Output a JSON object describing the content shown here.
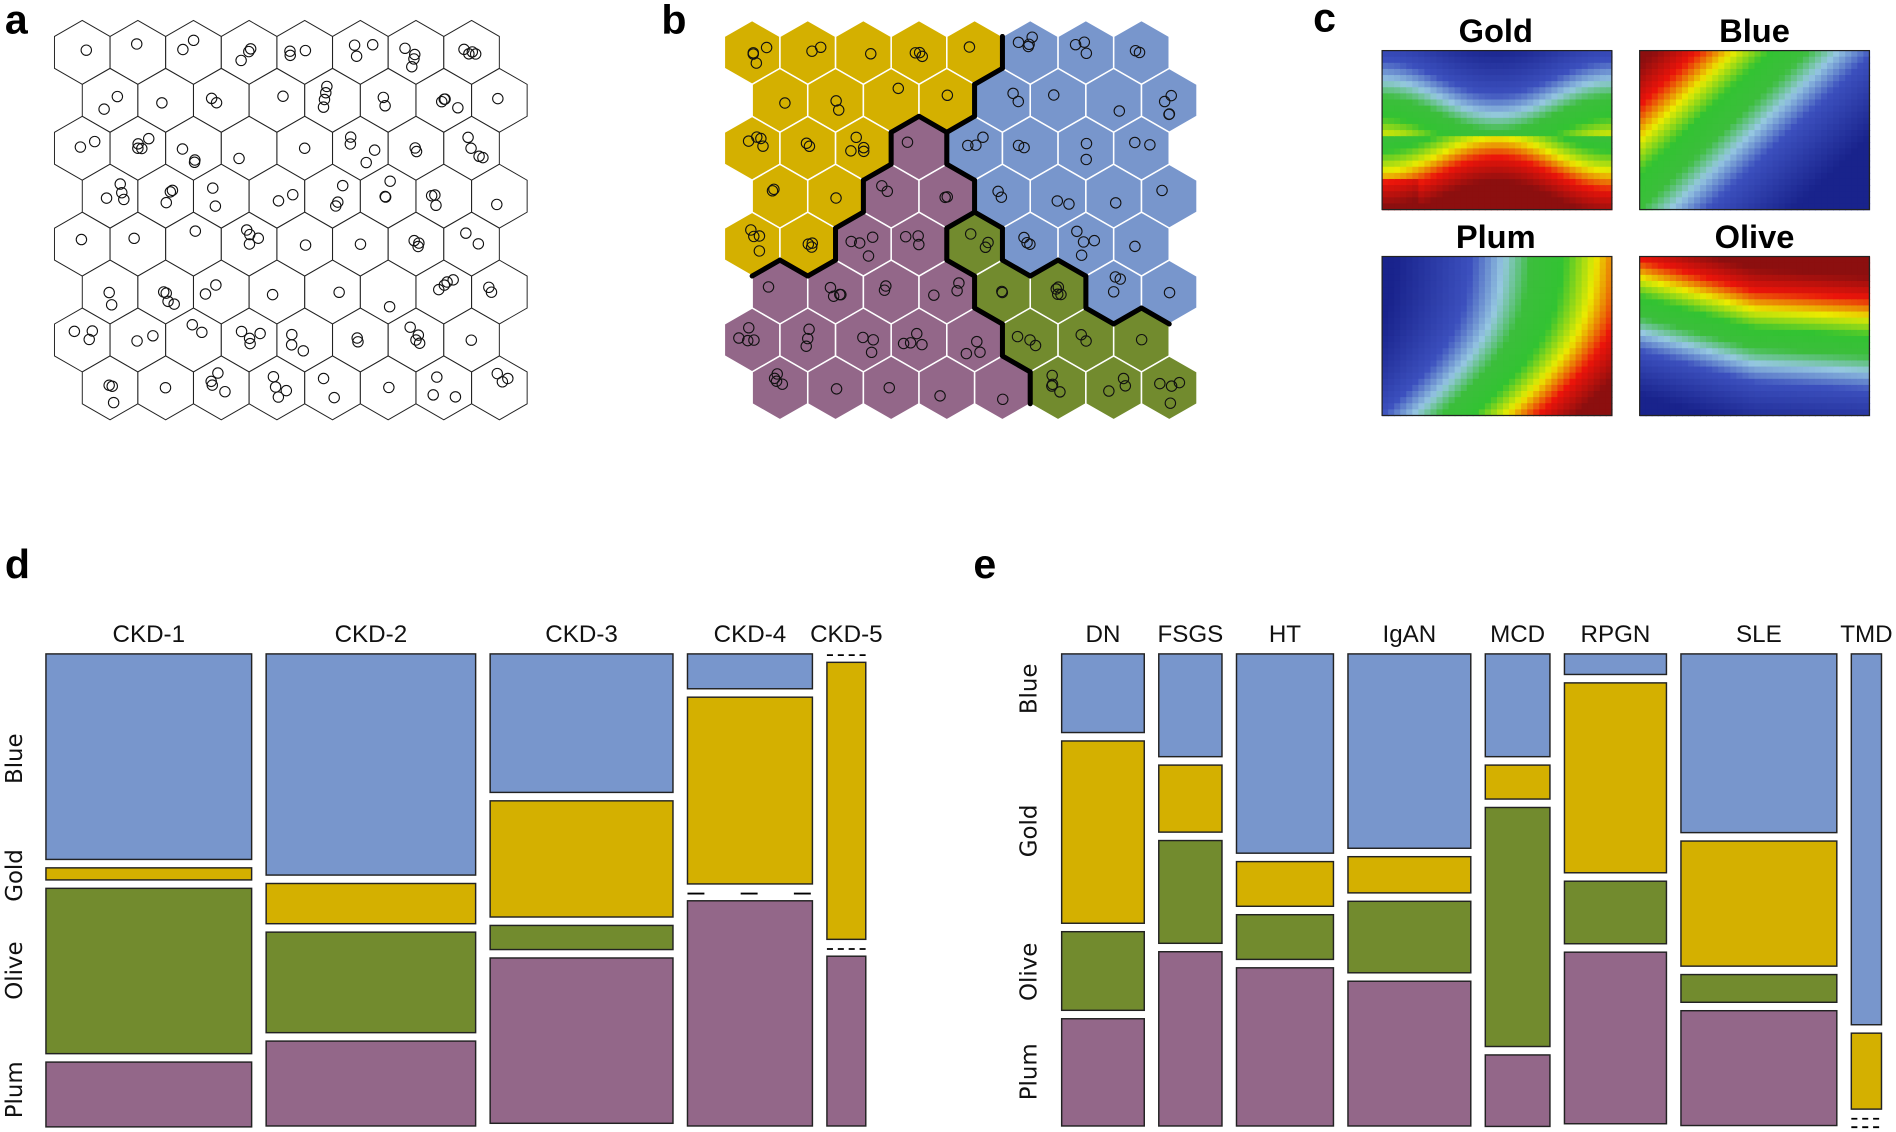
{
  "panel_labels": {
    "a": "a",
    "b": "b",
    "c": "c",
    "d": "d",
    "e": "e"
  },
  "colors": {
    "Gold": "#d4b000",
    "Blue": "#7896cc",
    "Plum": "#936789",
    "Olive": "#728b2e"
  },
  "chart_data": [
    {
      "panel": "a",
      "type": "som-grid",
      "rows": 8,
      "cols": 8
    },
    {
      "panel": "b",
      "type": "som-clusters",
      "rows": 8,
      "cols": 8,
      "clusters": [
        [
          "Gold",
          "Gold",
          "Gold",
          "Gold",
          "Gold",
          "Blue",
          "Blue",
          "Blue"
        ],
        [
          "Gold",
          "Gold",
          "Gold",
          "Gold",
          "Blue",
          "Blue",
          "Blue",
          "Blue"
        ],
        [
          "Gold",
          "Gold",
          "Gold",
          "Plum",
          "Blue",
          "Blue",
          "Blue",
          "Blue"
        ],
        [
          "Gold",
          "Gold",
          "Plum",
          "Plum",
          "Blue",
          "Blue",
          "Blue",
          "Blue"
        ],
        [
          "Gold",
          "Gold",
          "Plum",
          "Plum",
          "Olive",
          "Blue",
          "Blue",
          "Blue"
        ],
        [
          "Plum",
          "Plum",
          "Plum",
          "Plum",
          "Olive",
          "Olive",
          "Blue",
          "Blue"
        ],
        [
          "Plum",
          "Plum",
          "Plum",
          "Plum",
          "Plum",
          "Olive",
          "Olive",
          "Olive"
        ],
        [
          "Plum",
          "Plum",
          "Plum",
          "Plum",
          "Plum",
          "Olive",
          "Olive",
          "Olive"
        ]
      ]
    },
    {
      "panel": "c",
      "type": "heatmap",
      "titles": [
        "Gold",
        "Blue",
        "Plum",
        "Olive"
      ]
    },
    {
      "panel": "d",
      "type": "mosaic",
      "categories": [
        "CKD-1",
        "CKD-2",
        "CKD-3",
        "CKD-4",
        "CKD-5"
      ],
      "column_widths": [
        0.27,
        0.275,
        0.24,
        0.164,
        0.051
      ],
      "rows": [
        "Blue",
        "Gold",
        "Olive",
        "Plum"
      ],
      "proportions": [
        [
          0.46,
          0.027,
          0.37,
          0.145
        ],
        [
          0.495,
          0.09,
          0.225,
          0.19
        ],
        [
          0.31,
          0.26,
          0.054,
          0.37
        ],
        [
          0.078,
          0.418,
          0,
          0.504
        ],
        [
          0,
          0.62,
          0,
          0.38
        ]
      ]
    },
    {
      "panel": "e",
      "type": "mosaic",
      "categories": [
        "DN",
        "FSGS",
        "HT",
        "IgAN",
        "MCD",
        "RPGN",
        "SLE",
        "TMD"
      ],
      "column_widths": [
        0.115,
        0.088,
        0.135,
        0.171,
        0.09,
        0.142,
        0.217,
        0.042
      ],
      "rows": [
        "Blue",
        "Gold",
        "Olive",
        "Plum"
      ],
      "proportions": [
        [
          0.176,
          0.408,
          0.176,
          0.24
        ],
        [
          0.23,
          0.15,
          0.23,
          0.39
        ],
        [
          0.446,
          0.1,
          0.1,
          0.354
        ],
        [
          0.435,
          0.081,
          0.16,
          0.324
        ],
        [
          0.23,
          0.076,
          0.535,
          0.16
        ],
        [
          0.046,
          0.425,
          0.14,
          0.384
        ],
        [
          0.4,
          0.28,
          0.062,
          0.257
        ],
        [
          0.83,
          0.17,
          0,
          0
        ]
      ]
    }
  ]
}
